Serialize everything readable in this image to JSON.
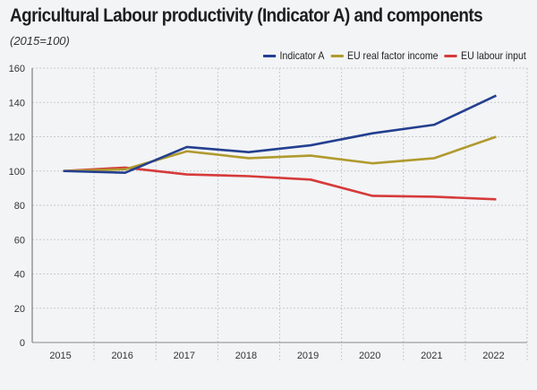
{
  "chart_data": {
    "type": "line",
    "title": "Agricultural Labour productivity (Indicator A) and components",
    "subtitle": "(2015=100)",
    "categories": [
      "2015",
      "2016",
      "2017",
      "2018",
      "2019",
      "2020",
      "2021",
      "2022"
    ],
    "ylim": [
      0,
      160
    ],
    "yticks": [
      0,
      20,
      40,
      60,
      80,
      100,
      120,
      140,
      160
    ],
    "grid": true,
    "legend_position": "top-right",
    "series": [
      {
        "name": "Indicator A",
        "color": "#233f8f",
        "values": [
          100,
          99,
          114,
          111,
          115,
          122,
          127,
          144
        ]
      },
      {
        "name": "EU real factor income",
        "color": "#b09a2e",
        "values": [
          100,
          101,
          111.5,
          107.5,
          109,
          104.5,
          107.5,
          120
        ]
      },
      {
        "name": "EU labour input",
        "color": "#d63a3a",
        "values": [
          100,
          102,
          98,
          97,
          95,
          85.5,
          85,
          83.5
        ]
      }
    ]
  }
}
